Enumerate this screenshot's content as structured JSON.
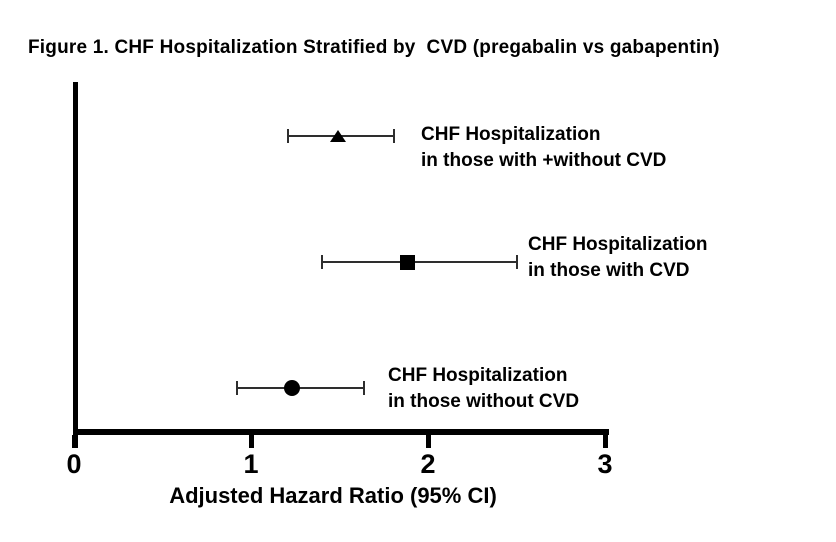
{
  "chart_data": {
    "type": "forest",
    "title": "Figure 1. CHF Hospitalization Stratified by  CVD (pregabalin vs gabapentin)",
    "xlabel": "Adjusted Hazard Ratio (95% CI)",
    "xlim": [
      0,
      3
    ],
    "xticks": [
      0,
      1,
      2,
      3
    ],
    "grid": false,
    "series": [
      {
        "marker": "triangle",
        "label_line1": "CHF Hospitalization",
        "label_line2": "in those with +without CVD",
        "hr": 1.49,
        "ci_low": 1.21,
        "ci_high": 1.81
      },
      {
        "marker": "square",
        "label_line1": "CHF Hospitalization",
        "label_line2": "in those with CVD",
        "hr": 1.88,
        "ci_low": 1.4,
        "ci_high": 2.5
      },
      {
        "marker": "circle",
        "label_line1": "CHF Hospitalization",
        "label_line2": "in those without CVD",
        "hr": 1.23,
        "ci_low": 0.92,
        "ci_high": 1.64
      }
    ],
    "colors": {
      "marker": "#000000",
      "ci_line": "#2e2e2e",
      "axis": "#000000",
      "text": "#000000",
      "background": "#ffffff"
    }
  }
}
